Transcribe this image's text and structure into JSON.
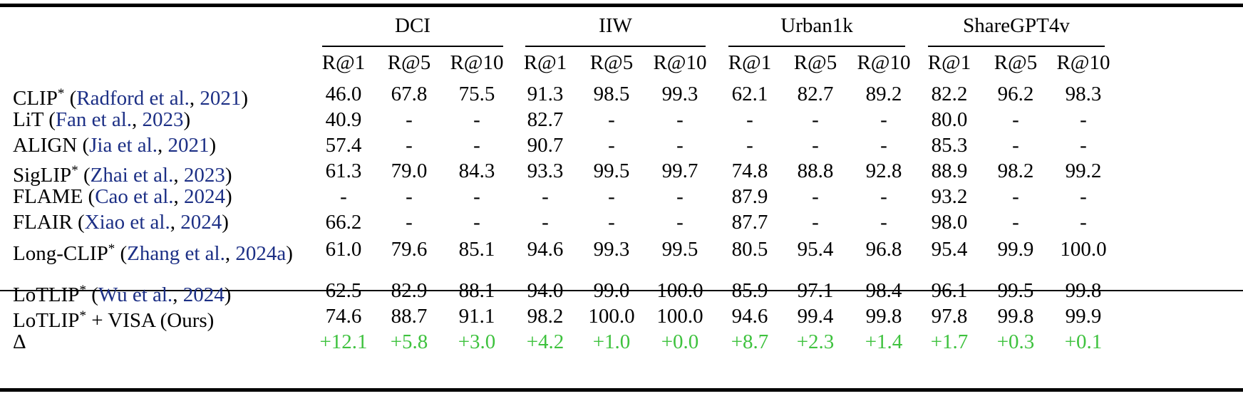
{
  "table": {
    "groups": [
      "DCI",
      "IIW",
      "Urban1k",
      "ShareGPT4v"
    ],
    "subheaders": [
      "R@1",
      "R@5",
      "R@10"
    ],
    "rows": [
      {
        "name": "CLIP",
        "star": "*",
        "cite_author": "Radford et al.",
        "cite_year": "2021",
        "values": [
          "46.0",
          "67.8",
          "75.5",
          "91.3",
          "98.5",
          "99.3",
          "62.1",
          "82.7",
          "89.2",
          "82.2",
          "96.2",
          "98.3"
        ]
      },
      {
        "name": "LiT",
        "star": "",
        "cite_author": "Fan et al.",
        "cite_year": "2023",
        "values": [
          "40.9",
          "-",
          "-",
          "82.7",
          "-",
          "-",
          "-",
          "-",
          "-",
          "80.0",
          "-",
          "-"
        ]
      },
      {
        "name": "ALIGN",
        "star": "",
        "cite_author": "Jia et al.",
        "cite_year": "2021",
        "values": [
          "57.4",
          "-",
          "-",
          "90.7",
          "-",
          "-",
          "-",
          "-",
          "-",
          "85.3",
          "-",
          "-"
        ]
      },
      {
        "name": "SigLIP",
        "star": "*",
        "cite_author": "Zhai et al.",
        "cite_year": "2023",
        "values": [
          "61.3",
          "79.0",
          "84.3",
          "93.3",
          "99.5",
          "99.7",
          "74.8",
          "88.8",
          "92.8",
          "88.9",
          "98.2",
          "99.2"
        ]
      },
      {
        "name": "FLAME",
        "star": "",
        "cite_author": "Cao et al.",
        "cite_year": "2024",
        "values": [
          "-",
          "-",
          "-",
          "-",
          "-",
          "-",
          "87.9",
          "-",
          "-",
          "93.2",
          "-",
          "-"
        ]
      },
      {
        "name": "FLAIR",
        "star": "",
        "cite_author": "Xiao et al.",
        "cite_year": "2024",
        "values": [
          "66.2",
          "-",
          "-",
          "-",
          "-",
          "-",
          "87.7",
          "-",
          "-",
          "98.0",
          "-",
          "-"
        ]
      },
      {
        "name": "Long-CLIP",
        "star": "*",
        "cite_author": "Zhang et al.",
        "cite_year": "2024a",
        "values": [
          "61.0",
          "79.6",
          "85.1",
          "94.6",
          "99.3",
          "99.5",
          "80.5",
          "95.4",
          "96.8",
          "95.4",
          "99.9",
          "100.0"
        ]
      },
      {
        "name": "LoTLIP",
        "star": "*",
        "cite_author": "Wu et al.",
        "cite_year": "2024",
        "values": [
          "62.5",
          "82.9",
          "88.1",
          "94.0",
          "99.0",
          "100.0",
          "85.9",
          "97.1",
          "98.4",
          "96.1",
          "99.5",
          "99.8"
        ]
      }
    ],
    "ours": {
      "name": "LoTLIP",
      "star": "*",
      "suffix": " + VISA (Ours)",
      "values": [
        "74.6",
        "88.7",
        "91.1",
        "98.2",
        "100.0",
        "100.0",
        "94.6",
        "99.4",
        "99.8",
        "97.8",
        "99.8",
        "99.9"
      ]
    },
    "delta": {
      "name": "Δ",
      "values": [
        "+12.1",
        "+5.8",
        "+3.0",
        "+4.2",
        "+1.0",
        "+0.0",
        "+8.7",
        "+2.3",
        "+1.4",
        "+1.7",
        "+0.3",
        "+0.1"
      ]
    },
    "colors": {
      "citation": "#1c2f85",
      "delta": "#3ec23e"
    }
  }
}
